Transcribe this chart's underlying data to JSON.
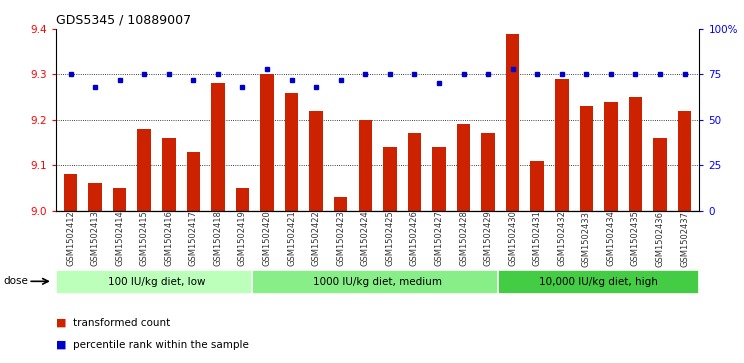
{
  "title": "GDS5345 / 10889007",
  "samples": [
    "GSM1502412",
    "GSM1502413",
    "GSM1502414",
    "GSM1502415",
    "GSM1502416",
    "GSM1502417",
    "GSM1502418",
    "GSM1502419",
    "GSM1502420",
    "GSM1502421",
    "GSM1502422",
    "GSM1502423",
    "GSM1502424",
    "GSM1502425",
    "GSM1502426",
    "GSM1502427",
    "GSM1502428",
    "GSM1502429",
    "GSM1502430",
    "GSM1502431",
    "GSM1502432",
    "GSM1502433",
    "GSM1502434",
    "GSM1502435",
    "GSM1502436",
    "GSM1502437"
  ],
  "bar_values": [
    9.08,
    9.06,
    9.05,
    9.18,
    9.16,
    9.13,
    9.28,
    9.05,
    9.3,
    9.26,
    9.22,
    9.03,
    9.2,
    9.14,
    9.17,
    9.14,
    9.19,
    9.17,
    9.39,
    9.11,
    9.29,
    9.23,
    9.24,
    9.25,
    9.16,
    9.22
  ],
  "percentile_values": [
    75,
    68,
    72,
    75,
    75,
    72,
    75,
    68,
    78,
    72,
    68,
    72,
    75,
    75,
    75,
    70,
    75,
    75,
    78,
    75,
    75,
    75,
    75,
    75,
    75,
    75
  ],
  "bar_color": "#cc2200",
  "percentile_color": "#0000cc",
  "groups": [
    {
      "label": "100 IU/kg diet, low",
      "start": 0,
      "end": 8,
      "color": "#bbffbb"
    },
    {
      "label": "1000 IU/kg diet, medium",
      "start": 8,
      "end": 18,
      "color": "#88ee88"
    },
    {
      "label": "10,000 IU/kg diet, high",
      "start": 18,
      "end": 26,
      "color": "#44cc44"
    }
  ],
  "ylim_left": [
    9.0,
    9.4
  ],
  "ylim_right": [
    0,
    100
  ],
  "yticks_left": [
    9.0,
    9.1,
    9.2,
    9.3,
    9.4
  ],
  "yticks_right": [
    0,
    25,
    50,
    75,
    100
  ],
  "ytick_labels_right": [
    "0",
    "25",
    "50",
    "75",
    "100%"
  ],
  "grid_values": [
    9.1,
    9.2,
    9.3
  ],
  "plot_bg_color": "#ffffff",
  "fig_bg_color": "#ffffff"
}
